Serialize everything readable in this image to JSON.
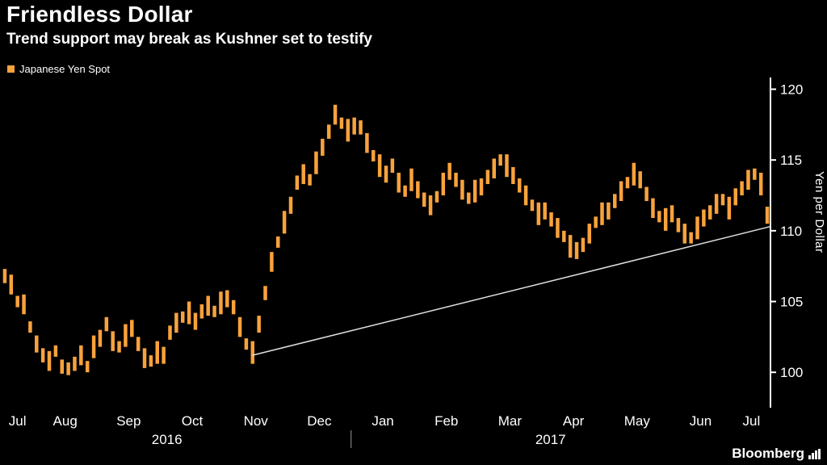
{
  "header": {
    "title": "Friendless Dollar",
    "subtitle": "Trend support may break as Kushner set to testify"
  },
  "legend": {
    "label": "Japanese Yen Spot"
  },
  "colors": {
    "background": "#000000",
    "bars": "#f9a23c",
    "trendline": "#e0e0e0",
    "axis": "#ffffff",
    "year_tick": "#9a9a9a"
  },
  "branding": {
    "logo_text": "Bloomberg"
  },
  "chart_data": {
    "type": "bar",
    "subtype": "high-low-price-bars",
    "title": "Friendless Dollar",
    "subtitle": "Trend support may break as Kushner set to testify",
    "series_name": "Japanese Yen Spot",
    "ylabel": "Yen per Dollar",
    "ylim": [
      97.5,
      120.6
    ],
    "y_ticks": [
      100,
      105,
      110,
      115,
      120
    ],
    "x_labels": [
      "Jul",
      "Aug",
      "Sep",
      "Oct",
      "Nov",
      "Dec",
      "Jan",
      "Feb",
      "Mar",
      "Apr",
      "May",
      "Jun",
      "Jul"
    ],
    "year_labels": [
      "2016",
      "2017"
    ],
    "grid": false,
    "legend_position": "top-left",
    "bars": [
      [
        106.3,
        107.3
      ],
      [
        105.5,
        106.9
      ],
      [
        104.6,
        105.4
      ],
      [
        104.1,
        105.5
      ],
      [
        102.8,
        103.6
      ],
      [
        101.4,
        102.6
      ],
      [
        100.7,
        101.7
      ],
      [
        100.1,
        101.5
      ],
      [
        101.1,
        101.9
      ],
      [
        99.9,
        100.9
      ],
      [
        99.8,
        100.7
      ],
      [
        100.1,
        101.1
      ],
      [
        100.5,
        101.9
      ],
      [
        100.0,
        100.8
      ],
      [
        101.0,
        102.6
      ],
      [
        101.8,
        103.0
      ],
      [
        102.9,
        103.9
      ],
      [
        101.5,
        102.9
      ],
      [
        101.4,
        102.2
      ],
      [
        101.8,
        103.4
      ],
      [
        102.5,
        103.7
      ],
      [
        101.5,
        102.5
      ],
      [
        100.3,
        101.7
      ],
      [
        100.4,
        101.2
      ],
      [
        100.6,
        102.2
      ],
      [
        100.6,
        101.8
      ],
      [
        102.3,
        103.3
      ],
      [
        102.8,
        104.2
      ],
      [
        103.5,
        104.3
      ],
      [
        103.4,
        105.0
      ],
      [
        103.0,
        104.2
      ],
      [
        103.8,
        104.8
      ],
      [
        104.0,
        105.4
      ],
      [
        103.9,
        104.7
      ],
      [
        104.1,
        105.7
      ],
      [
        104.6,
        105.8
      ],
      [
        104.1,
        105.1
      ],
      [
        102.5,
        103.9
      ],
      [
        101.6,
        102.4
      ],
      [
        100.6,
        102.2
      ],
      [
        102.8,
        104.0
      ],
      [
        105.1,
        106.1
      ],
      [
        107.1,
        108.5
      ],
      [
        108.8,
        109.6
      ],
      [
        109.8,
        111.4
      ],
      [
        111.2,
        112.4
      ],
      [
        112.9,
        113.9
      ],
      [
        113.3,
        114.7
      ],
      [
        113.2,
        114.0
      ],
      [
        114.0,
        115.6
      ],
      [
        115.3,
        116.5
      ],
      [
        116.5,
        117.5
      ],
      [
        117.5,
        118.9
      ],
      [
        117.2,
        118.0
      ],
      [
        116.3,
        117.9
      ],
      [
        116.8,
        118.0
      ],
      [
        116.8,
        117.8
      ],
      [
        115.5,
        116.9
      ],
      [
        114.9,
        115.7
      ],
      [
        113.8,
        115.4
      ],
      [
        113.4,
        114.6
      ],
      [
        114.1,
        115.1
      ],
      [
        112.7,
        114.1
      ],
      [
        112.4,
        113.2
      ],
      [
        112.8,
        114.4
      ],
      [
        112.3,
        113.5
      ],
      [
        111.7,
        112.7
      ],
      [
        111.1,
        112.5
      ],
      [
        112.0,
        112.8
      ],
      [
        112.5,
        114.1
      ],
      [
        113.6,
        114.8
      ],
      [
        113.1,
        114.1
      ],
      [
        112.2,
        113.6
      ],
      [
        111.9,
        112.7
      ],
      [
        112.0,
        113.6
      ],
      [
        112.5,
        113.7
      ],
      [
        113.3,
        114.3
      ],
      [
        113.7,
        115.1
      ],
      [
        114.6,
        115.4
      ],
      [
        113.8,
        115.4
      ],
      [
        113.3,
        114.5
      ],
      [
        112.7,
        113.7
      ],
      [
        111.8,
        113.2
      ],
      [
        111.4,
        112.2
      ],
      [
        110.4,
        112.0
      ],
      [
        110.8,
        112.0
      ],
      [
        110.3,
        111.3
      ],
      [
        109.5,
        110.9
      ],
      [
        109.2,
        110.0
      ],
      [
        108.1,
        109.7
      ],
      [
        108.0,
        109.2
      ],
      [
        108.5,
        109.5
      ],
      [
        109.1,
        110.5
      ],
      [
        110.2,
        111.0
      ],
      [
        110.4,
        112.0
      ],
      [
        110.8,
        112.0
      ],
      [
        111.6,
        112.6
      ],
      [
        112.1,
        113.5
      ],
      [
        113.0,
        113.8
      ],
      [
        113.2,
        114.8
      ],
      [
        113.0,
        114.2
      ],
      [
        112.1,
        113.1
      ],
      [
        110.9,
        112.3
      ],
      [
        110.6,
        111.4
      ],
      [
        110.0,
        111.6
      ],
      [
        110.6,
        111.8
      ],
      [
        109.9,
        110.9
      ],
      [
        109.1,
        110.5
      ],
      [
        109.1,
        109.9
      ],
      [
        109.4,
        111.0
      ],
      [
        110.3,
        111.5
      ],
      [
        110.8,
        111.8
      ],
      [
        111.2,
        112.6
      ],
      [
        111.8,
        112.6
      ],
      [
        110.8,
        112.4
      ],
      [
        111.8,
        113.0
      ],
      [
        112.5,
        113.5
      ],
      [
        112.9,
        114.3
      ],
      [
        113.6,
        114.4
      ],
      [
        112.5,
        114.1
      ],
      [
        110.5,
        111.7
      ]
    ],
    "trendline": {
      "x1_frac": 0.326,
      "y1_value": 101.2,
      "x2_frac": 1.0,
      "y2_value": 110.3
    }
  }
}
